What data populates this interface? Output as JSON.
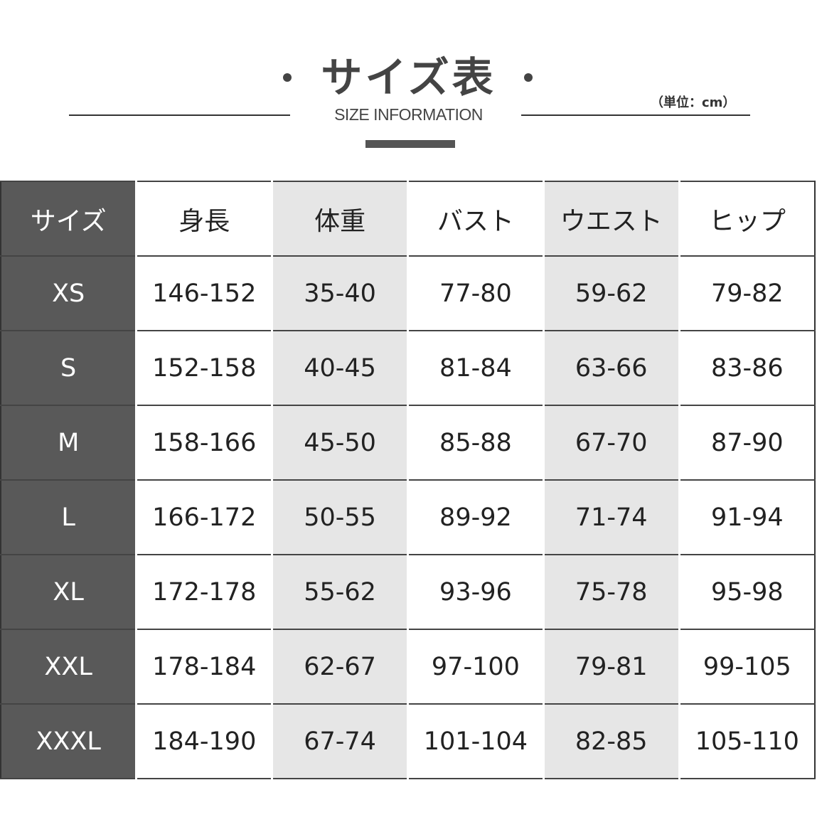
{
  "title": "サイズ表",
  "subtitle": "SIZE INFORMATION",
  "unit": "（単位：cm）",
  "table": {
    "headers": [
      "サイズ",
      "身長",
      "体重",
      "バスト",
      "ウエスト",
      "ヒップ"
    ],
    "rows": [
      [
        "XS",
        "146-152",
        "35-40",
        "77-80",
        "59-62",
        "79-82"
      ],
      [
        "S",
        "152-158",
        "40-45",
        "81-84",
        "63-66",
        "83-86"
      ],
      [
        "M",
        "158-166",
        "45-50",
        "85-88",
        "67-70",
        "87-90"
      ],
      [
        "L",
        "166-172",
        "50-55",
        "89-92",
        "71-74",
        "91-94"
      ],
      [
        "XL",
        "172-178",
        "55-62",
        "93-96",
        "75-78",
        "95-98"
      ],
      [
        "XXL",
        "178-184",
        "62-67",
        "97-100",
        "79-81",
        "99-105"
      ],
      [
        "XXXL",
        "184-190",
        "67-74",
        "101-104",
        "82-85",
        "105-110"
      ]
    ]
  }
}
